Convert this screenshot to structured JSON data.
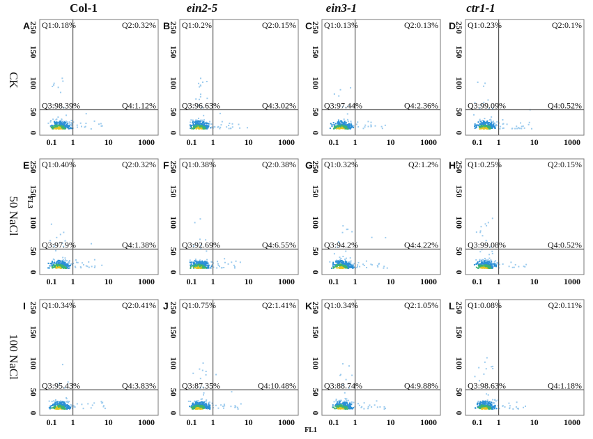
{
  "column_headers": [
    "Col-1",
    "ein2-5",
    "ein3-1",
    "ctr1-1"
  ],
  "row_labels": [
    "CK",
    "50 NaCl",
    "100 NaCl"
  ],
  "axis_labels": {
    "y": "FL3",
    "x": "FL1"
  },
  "x_ticks": [
    "0.1",
    "1",
    "10",
    "1000"
  ],
  "y_ticks": [
    "0",
    "50",
    "100",
    "150",
    "250"
  ],
  "panels": [
    {
      "letter": "A",
      "q1": "Q1:0.18%",
      "q2": "Q2:0.32%",
      "q3": "Q3:98.39%",
      "q4": "Q4:1.12%"
    },
    {
      "letter": "B",
      "q1": "Q1:0.2%",
      "q2": "Q2:0.15%",
      "q3": "Q3:96.63%",
      "q4": "Q4:3.02%"
    },
    {
      "letter": "C",
      "q1": "Q1:0.13%",
      "q2": "Q2:0.13%",
      "q3": "Q3:97.44%",
      "q4": "Q4:2.36%"
    },
    {
      "letter": "D",
      "q1": "Q1:0.23%",
      "q2": "Q2:0.1%",
      "q3": "Q3:99.09%",
      "q4": "Q4:0.52%"
    },
    {
      "letter": "E",
      "q1": "Q1:0.40%",
      "q2": "Q2:0.32%",
      "q3": "Q3:97.9%",
      "q4": "Q4:1.38%"
    },
    {
      "letter": "F",
      "q1": "Q1:0.38%",
      "q2": "Q2:0.38%",
      "q3": "Q3:92.69%",
      "q4": "Q4:6.55%"
    },
    {
      "letter": "G",
      "q1": "Q1:0.32%",
      "q2": "Q2:1.2%",
      "q3": "Q3:94.2%",
      "q4": "Q4:4.22%"
    },
    {
      "letter": "H",
      "q1": "Q1:0.25%",
      "q2": "Q2:0.15%",
      "q3": "Q3:99.08%",
      "q4": "Q4:0.52%"
    },
    {
      "letter": "I",
      "q1": "Q1:0.34%",
      "q2": "Q2:0.41%",
      "q3": "Q3:95.43%",
      "q4": "Q4:3.83%"
    },
    {
      "letter": "J",
      "q1": "Q1:0.75%",
      "q2": "Q2:1.41%",
      "q3": "Q3:87.35%",
      "q4": "Q4:10.48%"
    },
    {
      "letter": "K",
      "q1": "Q1:0.34%",
      "q2": "Q2:1.05%",
      "q3": "Q3:88.74%",
      "q4": "Q4:9.88%"
    },
    {
      "letter": "L",
      "q1": "Q1:0.08%",
      "q2": "Q2:0.11%",
      "q3": "Q3:98.63%",
      "q4": "Q4:1.18%"
    }
  ]
}
